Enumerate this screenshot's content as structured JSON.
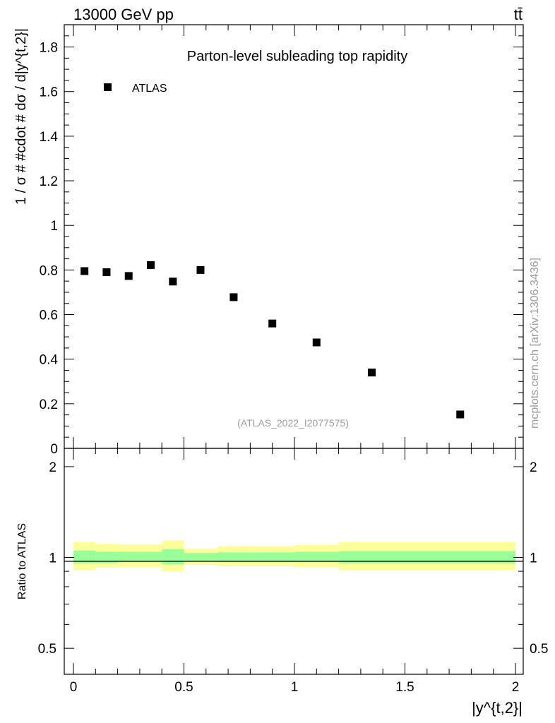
{
  "header": {
    "left": "13000 GeV pp",
    "right": "tt̄"
  },
  "side_text": "mcplots.cern.ch [arXiv:1306.3436]",
  "watermark": "(ATLAS_2022_I2077575)",
  "chart_data": [
    {
      "type": "scatter",
      "title": "Parton-level subleading top rapidity",
      "ylabel": "1 / σ # #cdot # dσ / d|y^{t,2}|",
      "xlim": [
        0,
        2
      ],
      "ylim": [
        0,
        1.9
      ],
      "yticks": [
        "0",
        "0.2",
        "0.4",
        "0.6",
        "0.8",
        "1",
        "1.2",
        "1.4",
        "1.6",
        "1.8"
      ],
      "legend": {
        "placement": "top-left",
        "entries": [
          "ATLAS"
        ]
      },
      "series": [
        {
          "name": "ATLAS",
          "marker": "square",
          "color": "#000000",
          "x": [
            0.05,
            0.15,
            0.25,
            0.35,
            0.45,
            0.575,
            0.725,
            0.9,
            1.1,
            1.35,
            1.75
          ],
          "y": [
            0.795,
            0.79,
            0.773,
            0.822,
            0.748,
            0.8,
            0.678,
            0.56,
            0.475,
            0.34,
            0.152
          ]
        }
      ]
    },
    {
      "type": "area",
      "ylabel": "Ratio to ATLAS",
      "xlabel": "|y^{t,2}|",
      "xlim": [
        0,
        2
      ],
      "ylim": [
        0.41,
        2.3
      ],
      "yscale": "log",
      "yticks": [
        "0.5",
        "1",
        "2"
      ],
      "xticks": [
        "0",
        "0.5",
        "1",
        "1.5",
        "2"
      ],
      "reference_line": 1,
      "bin_edges": [
        0,
        0.1,
        0.2,
        0.3,
        0.4,
        0.5,
        0.65,
        0.8,
        1.0,
        1.2,
        1.5,
        2.0
      ],
      "band_outer": {
        "color": "#ffff99",
        "low": [
          0.91,
          0.925,
          0.93,
          0.93,
          0.9,
          0.945,
          0.935,
          0.935,
          0.93,
          0.91,
          0.91
        ],
        "high": [
          1.125,
          1.11,
          1.105,
          1.105,
          1.14,
          1.07,
          1.09,
          1.09,
          1.1,
          1.125,
          1.125
        ]
      },
      "band_inner": {
        "color": "#99ff99",
        "low": [
          0.955,
          0.96,
          0.965,
          0.965,
          0.95,
          0.97,
          0.965,
          0.965,
          0.965,
          0.955,
          0.955
        ],
        "high": [
          1.055,
          1.045,
          1.045,
          1.045,
          1.065,
          1.035,
          1.04,
          1.04,
          1.045,
          1.05,
          1.05
        ]
      }
    }
  ]
}
